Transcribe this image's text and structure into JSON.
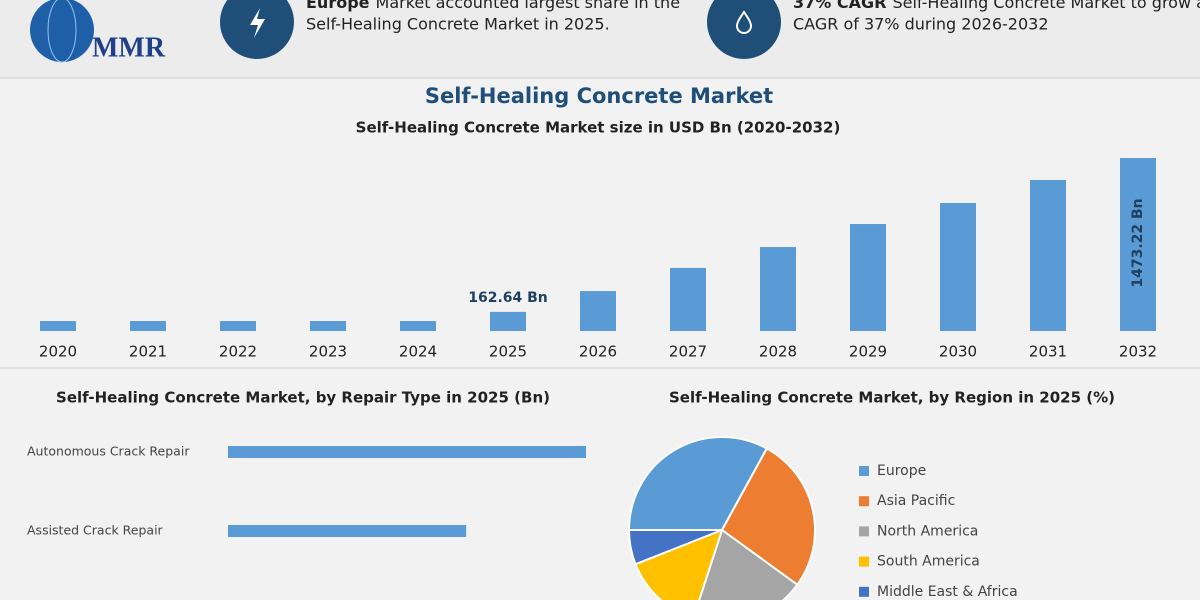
{
  "header": {
    "logo": "MMR",
    "cards": [
      {
        "bold": "Europe",
        "lines": [
          "Market accounted largest share in the",
          "Self-Healing Concrete Market in 2025."
        ]
      },
      {
        "bold": "37% CAGR",
        "lines": [
          "Self-Healing Concrete Market to grow at a",
          "CAGR of 37% during 2026-2032"
        ]
      }
    ]
  },
  "title": "Self-Healing Concrete Market",
  "chart_data": [
    {
      "type": "bar",
      "title": "Self-Healing Concrete Market size in USD Bn (2020-2032)",
      "categories": [
        "2020",
        "2021",
        "2022",
        "2023",
        "2024",
        "2025",
        "2026",
        "2027",
        "2028",
        "2029",
        "2030",
        "2031",
        "2032"
      ],
      "values": [
        85,
        85,
        85,
        85,
        85,
        162.64,
        340,
        537,
        715,
        911,
        1090,
        1286,
        1473.22
      ],
      "value_labels": [
        null,
        null,
        null,
        null,
        null,
        "162.64 Bn",
        null,
        null,
        null,
        null,
        null,
        null,
        "1473.22 Bn"
      ],
      "color": "#5b9bd5"
    },
    {
      "type": "barh",
      "title": "Self-Healing Concrete Market, by Repair Type in 2025 (Bn)",
      "categories": [
        "Autonomous Crack Repair",
        "Assisted Crack Repair"
      ],
      "values": [
        95,
        63.2
      ],
      "color": "#5b9bd5"
    },
    {
      "type": "pie",
      "title": "Self-Healing Concrete Market, by Region in 2025 (%)",
      "series": [
        {
          "name": "Europe",
          "color": "#5b9bd5",
          "values": [
            33
          ]
        },
        {
          "name": "Asia Pacific",
          "color": "#ed7d31",
          "values": [
            27
          ]
        },
        {
          "name": "North America",
          "color": "#a5a5a5",
          "values": [
            20
          ]
        },
        {
          "name": "South America",
          "color": "#ffc000",
          "values": [
            14
          ]
        },
        {
          "name": "Middle East & Africa",
          "color": "#4472c4",
          "values": [
            6
          ]
        }
      ]
    }
  ]
}
